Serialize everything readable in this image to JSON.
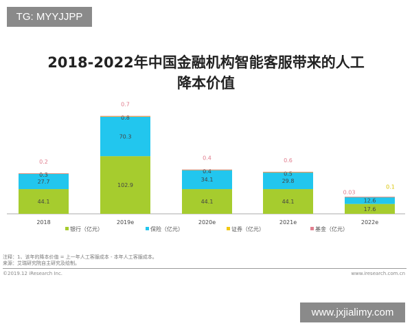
{
  "watermarks": {
    "top_left": "TG: MYYJJPP",
    "bottom_right": "www.jxjialimy.com"
  },
  "chart_data": {
    "type": "bar",
    "stacked": true,
    "title": "2018-2022年中国金融机构智能客服带来的人工降本价值",
    "title_lines": [
      "2018-2022年中国金融机构智能客服带来的人工",
      "降本价值"
    ],
    "categories": [
      "2018",
      "2019e",
      "2020e",
      "2021e",
      "2022e"
    ],
    "series": [
      {
        "name": "银行（亿元）",
        "color": "#a6cc2e",
        "values": [
          44.1,
          102.9,
          44.1,
          44.1,
          17.6
        ],
        "labels": [
          "44.1",
          "102.9",
          "44.1",
          "44.1",
          "17.6"
        ]
      },
      {
        "name": "保险（亿元）",
        "color": "#22c6ee",
        "values": [
          27.7,
          70.3,
          34.1,
          29.8,
          12.6
        ],
        "labels": [
          "27.7",
          "70.3",
          "34.1",
          "29.8",
          "12.6"
        ]
      },
      {
        "name": "证券（亿元）",
        "color": "#f2c811",
        "values": [
          0.3,
          0.8,
          0.4,
          0.5,
          0.1
        ],
        "labels": [
          "0.3",
          "0.8",
          "0.4",
          "0.5",
          "0.1"
        ]
      },
      {
        "name": "基金（亿元）",
        "color": "#e0808f",
        "values": [
          0.2,
          0.7,
          0.4,
          0.6,
          0.03
        ],
        "labels": [
          "0.2",
          "0.7",
          "0.4",
          "0.6",
          "0.03"
        ]
      }
    ],
    "legend": "bottom",
    "grid": false,
    "ylim": [
      0,
      180
    ]
  },
  "notes": {
    "note": "注释：1、该年的降本价值 = 上一年人工客服成本 - 本年人工客服成本。",
    "source": "来源：艾瑞研究院自主研究及绘制。",
    "copyright": "©2019.12 iResearch Inc.",
    "website": "www.iresearch.com.cn"
  }
}
